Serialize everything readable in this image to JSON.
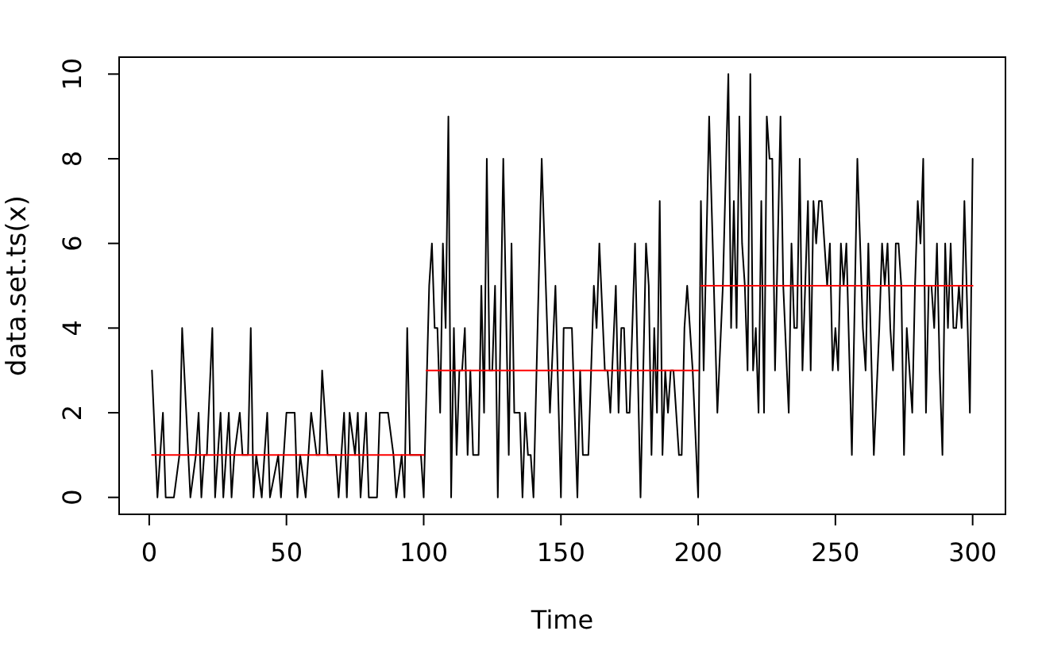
{
  "chart_data": {
    "type": "line",
    "xlabel": "Time",
    "ylabel": "data.set.ts(x)",
    "xlim": [
      -10.96,
      311.96
    ],
    "ylim": [
      -0.4,
      10.4
    ],
    "xticks": [
      0,
      50,
      100,
      150,
      200,
      250,
      300
    ],
    "yticks": [
      0,
      2,
      4,
      6,
      8,
      10
    ],
    "series": [
      {
        "color": "#000000",
        "x": [
          1,
          3,
          5,
          6,
          9,
          11,
          12,
          15,
          17,
          18,
          19,
          20,
          21,
          23,
          24,
          26,
          27,
          29,
          30,
          31,
          33,
          34,
          36,
          37,
          38,
          39,
          41,
          42,
          43,
          44,
          47,
          48,
          50,
          53,
          54,
          55,
          57,
          59,
          61,
          62,
          63,
          65,
          68,
          69,
          71,
          72,
          73,
          75,
          76,
          77,
          79,
          80,
          83,
          84,
          87,
          89,
          90,
          92,
          93,
          94,
          95,
          99,
          100,
          102,
          103,
          104,
          105,
          106,
          107,
          108,
          109,
          110,
          111,
          112,
          113,
          114,
          115,
          116,
          117,
          118,
          120,
          121,
          122,
          123,
          124,
          125,
          126,
          127,
          129,
          131,
          132,
          133,
          135,
          136,
          137,
          138,
          139,
          140,
          143,
          146,
          148,
          150,
          151,
          154,
          156,
          157,
          158,
          160,
          162,
          163,
          164,
          166,
          167,
          168,
          170,
          171,
          172,
          173,
          174,
          175,
          177,
          179,
          181,
          182,
          183,
          184,
          185,
          186,
          187,
          188,
          189,
          190,
          191,
          192,
          193,
          194,
          195,
          196,
          197,
          198,
          200,
          201,
          202,
          203,
          204,
          207,
          209,
          211,
          212,
          213,
          214,
          215,
          216,
          217,
          218,
          219,
          220,
          221,
          222,
          223,
          224,
          225,
          226,
          227,
          228,
          230,
          231,
          233,
          234,
          235,
          236,
          237,
          238,
          240,
          241,
          242,
          243,
          244,
          245,
          246,
          247,
          248,
          249,
          250,
          251,
          252,
          253,
          254,
          256,
          258,
          260,
          261,
          262,
          264,
          266,
          267,
          268,
          269,
          270,
          271,
          272,
          273,
          274,
          275,
          276,
          278,
          279,
          280,
          281,
          282,
          283,
          284,
          285,
          286,
          287,
          288,
          289,
          290,
          291,
          292,
          293,
          294,
          295,
          296,
          297,
          299,
          300
        ],
        "values": [
          3,
          0,
          2,
          0,
          0,
          1,
          4,
          0,
          1,
          2,
          0,
          1,
          1,
          4,
          0,
          2,
          0,
          2,
          0,
          1,
          2,
          1,
          1,
          4,
          0,
          1,
          0,
          1,
          2,
          0,
          1,
          0,
          2,
          2,
          0,
          1,
          0,
          2,
          1,
          1,
          3,
          1,
          1,
          0,
          2,
          0,
          2,
          1,
          2,
          0,
          2,
          0,
          0,
          2,
          2,
          1,
          0,
          1,
          0,
          4,
          1,
          1,
          0,
          5,
          6,
          4,
          4,
          2,
          6,
          4,
          9,
          0,
          4,
          1,
          3,
          3,
          4,
          1,
          3,
          1,
          1,
          5,
          2,
          8,
          3,
          3,
          5,
          0,
          8,
          1,
          6,
          2,
          2,
          0,
          2,
          1,
          1,
          0,
          8,
          2,
          5,
          0,
          4,
          4,
          0,
          3,
          1,
          1,
          5,
          4,
          6,
          3,
          3,
          2,
          5,
          2,
          4,
          4,
          2,
          2,
          6,
          0,
          6,
          5,
          1,
          4,
          2,
          7,
          1,
          3,
          2,
          3,
          3,
          2,
          1,
          1,
          4,
          5,
          4,
          3,
          0,
          7,
          3,
          6,
          9,
          2,
          5,
          10,
          4,
          7,
          4,
          9,
          6,
          5,
          3,
          10,
          3,
          4,
          2,
          7,
          2,
          9,
          8,
          8,
          3,
          9,
          5,
          2,
          6,
          4,
          4,
          8,
          3,
          7,
          3,
          7,
          6,
          7,
          7,
          6,
          5,
          6,
          3,
          4,
          3,
          6,
          5,
          6,
          1,
          8,
          4,
          3,
          6,
          1,
          4,
          6,
          5,
          6,
          4,
          3,
          6,
          6,
          5,
          1,
          4,
          2,
          5,
          7,
          6,
          8,
          2,
          5,
          5,
          4,
          6,
          3,
          1,
          6,
          4,
          6,
          4,
          4,
          5,
          4,
          7,
          2,
          8
        ]
      },
      {
        "color": "#ff0000",
        "x": [
          1,
          100
        ],
        "values": [
          1,
          1
        ]
      },
      {
        "color": "#ff0000",
        "x": [
          101,
          200
        ],
        "values": [
          3,
          3
        ]
      },
      {
        "color": "#ff0000",
        "x": [
          201,
          300
        ],
        "values": [
          5,
          5
        ]
      }
    ]
  }
}
